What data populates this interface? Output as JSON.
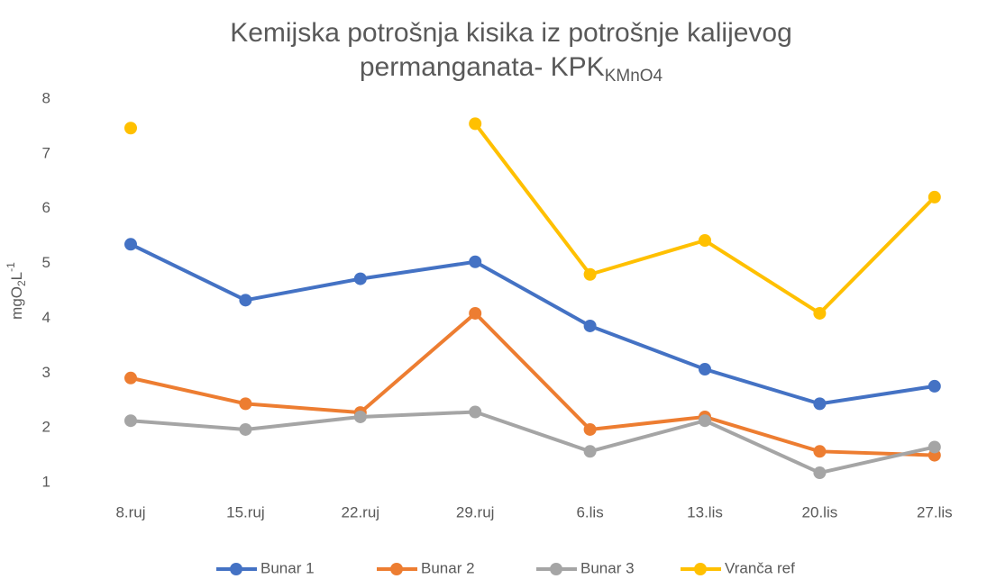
{
  "chart_data": {
    "type": "line",
    "title": [
      "Kemijska potrošnja kisika iz potrošnje kalijevog",
      "permanganata- KPK"
    ],
    "title_subscript": "KMnO4",
    "ylabel_parts": [
      "mgO",
      "2",
      "L",
      "-1"
    ],
    "categories": [
      "8.ruj",
      "15.ruj",
      "22.ruj",
      "29.ruj",
      "6.lis",
      "13.lis",
      "20.lis",
      "27.lis"
    ],
    "series": [
      {
        "name": "Bunar 1",
        "color": "#4472c4",
        "values": [
          5.35,
          4.33,
          4.72,
          5.03,
          3.86,
          3.07,
          2.44,
          2.76
        ]
      },
      {
        "name": "Bunar 2",
        "color": "#ed7d31",
        "values": [
          2.91,
          2.44,
          2.28,
          4.09,
          1.97,
          2.2,
          1.57,
          1.5
        ]
      },
      {
        "name": "Bunar 3",
        "color": "#a5a5a5",
        "values": [
          2.13,
          1.97,
          2.2,
          2.29,
          1.57,
          2.13,
          1.18,
          1.65
        ]
      },
      {
        "name": "Vranča ref",
        "color": "#ffc000",
        "values": [
          7.47,
          null,
          null,
          7.55,
          4.8,
          5.42,
          4.09,
          6.21
        ]
      }
    ],
    "ylim": [
      1,
      8
    ],
    "yticks": [
      1,
      2,
      3,
      4,
      5,
      6,
      7,
      8
    ],
    "grid": false,
    "legend": "bottom"
  }
}
